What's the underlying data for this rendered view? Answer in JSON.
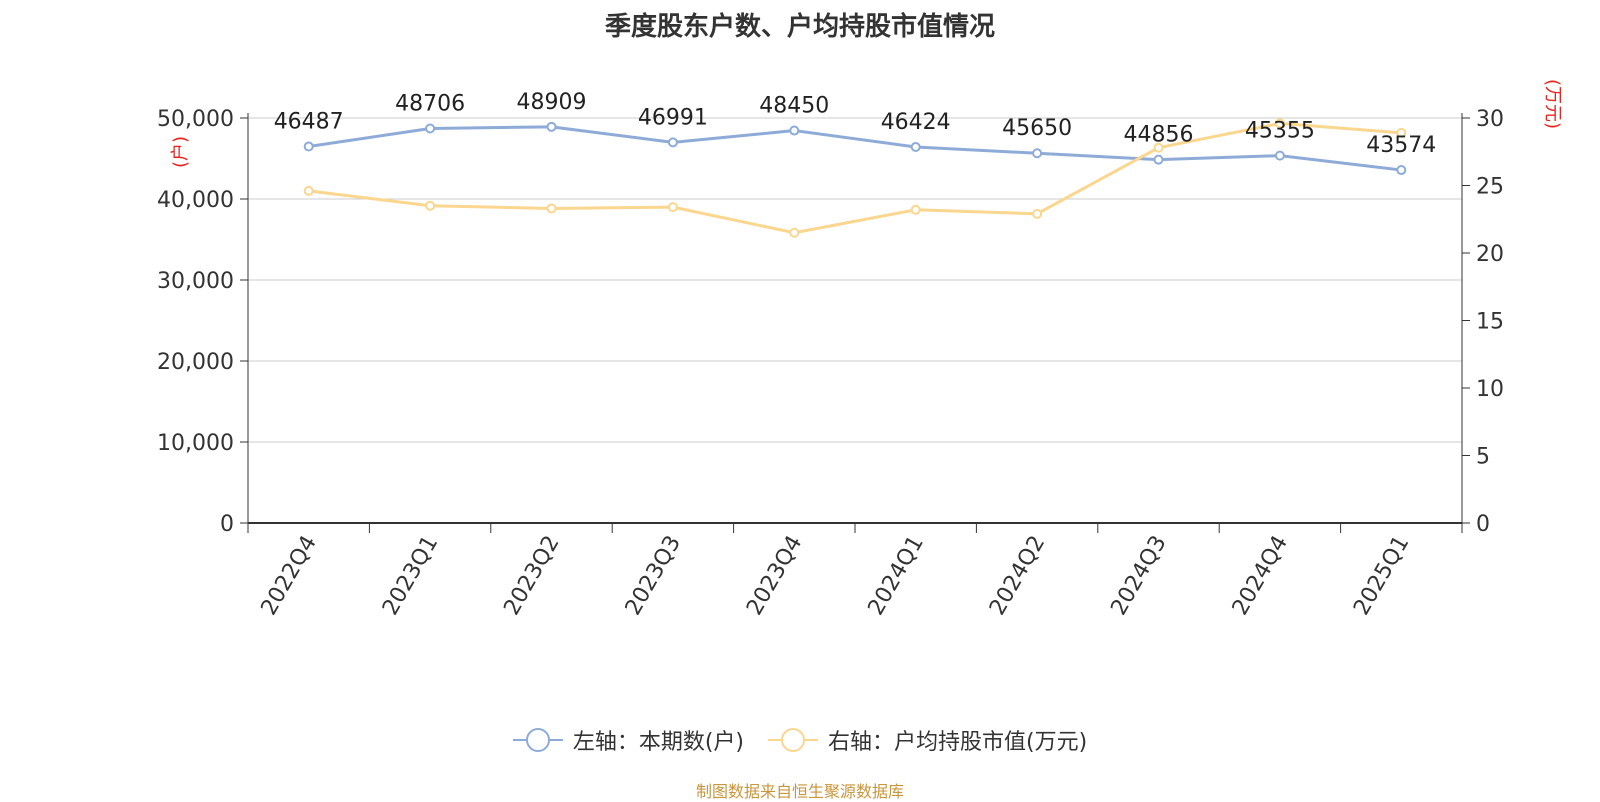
{
  "title": "季度股东户数、户均持股市值情况",
  "source": "制图数据来自恒生聚源数据库",
  "colors": {
    "left": "#8eabd8",
    "right": "#fad68e",
    "axis_unit": "#e8231f"
  },
  "chart_data": {
    "type": "line",
    "categories": [
      "2022Q4",
      "2023Q1",
      "2023Q2",
      "2023Q3",
      "2023Q4",
      "2024Q1",
      "2024Q2",
      "2024Q3",
      "2024Q4",
      "2025Q1"
    ],
    "series": [
      {
        "name": "左轴：本期数(户)",
        "axis": "left",
        "values": [
          46487,
          48706,
          48909,
          46991,
          48450,
          46424,
          45650,
          44856,
          45355,
          43574
        ],
        "labels": [
          "46487",
          "48706",
          "48909",
          "46991",
          "48450",
          "46424",
          "45650",
          "44856",
          "45355",
          "43574"
        ]
      },
      {
        "name": "右轴：户均持股市值(万元)",
        "axis": "right",
        "values": [
          24.6,
          23.5,
          23.3,
          23.4,
          21.5,
          23.2,
          22.9,
          27.8,
          29.6,
          28.9
        ]
      }
    ],
    "y_left": {
      "unit": "(户)",
      "ticks": [
        "0",
        "10,000",
        "20,000",
        "30,000",
        "40,000",
        "50,000"
      ],
      "lim": [
        0,
        50000
      ]
    },
    "y_right": {
      "unit": "(万元)",
      "ticks": [
        "0",
        "5",
        "10",
        "15",
        "20",
        "25",
        "30"
      ],
      "lim": [
        0,
        30
      ]
    },
    "grid": true,
    "legend_position": "bottom"
  }
}
